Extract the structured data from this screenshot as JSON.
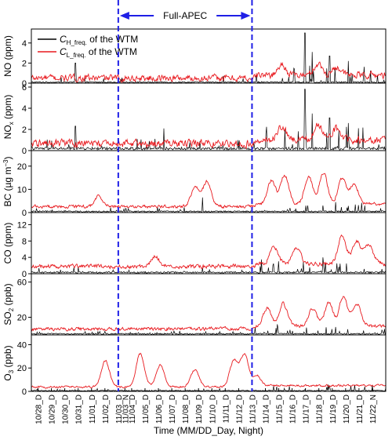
{
  "chart_data": {
    "type": "line",
    "apec_label": "Full-APEC",
    "apec_period": {
      "start_index": 10,
      "end_index": 27
    },
    "legend": {
      "placement": "top-left",
      "entries": [
        {
          "name_main": "C",
          "name_sub": "H_freq.",
          "suffix": " of the WTM",
          "color": "#000000"
        },
        {
          "name_main": "C",
          "name_sub": "L_freq.",
          "suffix": " of the WTM",
          "color": "#e8191e"
        }
      ]
    },
    "xlabel": "Time (MM/DD_Day, Night)",
    "categories": [
      "10/28_D",
      "10/29_D",
      "10/30_D",
      "10/31_D",
      "11/01_D",
      "11/02_D",
      "11/03_D",
      "11/03_N",
      "11/04_D",
      "11/05_D",
      "11/06_D",
      "11/07_D",
      "11/08_D",
      "11/09_D",
      "11/10_D",
      "11/11_D",
      "11/12_D",
      "11/13_D",
      "11/14_D",
      "11/15_D",
      "11/16_D",
      "11/17_D",
      "11/18_D",
      "11/19_D",
      "11/20_D",
      "11/21_D",
      "11/22_N"
    ],
    "category_positions": [
      0,
      1,
      2,
      3,
      4,
      5,
      6,
      6.5,
      7,
      8,
      9,
      10,
      11,
      12,
      13,
      14,
      15,
      16,
      17,
      18,
      19,
      20,
      21,
      22,
      23,
      24,
      25
    ],
    "x_range": [
      -0.5,
      26.0
    ],
    "apec_start_pos": 6,
    "apec_end_pos": 16,
    "panels": [
      {
        "ylabel_main": "NO (ppm)",
        "ylabel_sub": "",
        "ylabel_rest": "",
        "ylabel_sup": "",
        "ylim": [
          0,
          5
        ],
        "ticks": [
          0,
          2,
          4
        ],
        "high_base": 0.12,
        "high_spike": 1.2,
        "low_base": 0.35,
        "low_level": 0.8,
        "peaks": [
          {
            "x": 2.8,
            "v": 2.0
          },
          {
            "x": 19.95,
            "v": 5.1
          },
          {
            "x": 20.5,
            "v": 3.1
          },
          {
            "x": 21.8,
            "v": 2.7
          },
          {
            "x": 23.2,
            "v": 2.2
          }
        ],
        "red_bumps": [
          {
            "x": 18.2,
            "v": 1.4
          },
          {
            "x": 20.9,
            "v": 1.5
          },
          {
            "x": 22.3,
            "v": 1.2
          }
        ]
      },
      {
        "ylabel_main": "NO",
        "ylabel_sub": "x",
        "ylabel_rest": " (ppm)",
        "ylabel_sup": "",
        "ylim": [
          0,
          6
        ],
        "ticks": [
          0,
          2,
          4,
          6
        ],
        "high_base": 0.25,
        "high_spike": 1.4,
        "low_base": 0.5,
        "low_level": 1.0,
        "peaks": [
          {
            "x": 2.8,
            "v": 2.3
          },
          {
            "x": 9.4,
            "v": 2.1
          },
          {
            "x": 19.95,
            "v": 5.8
          },
          {
            "x": 20.5,
            "v": 3.5
          },
          {
            "x": 21.8,
            "v": 3.1
          },
          {
            "x": 23.2,
            "v": 2.6
          }
        ],
        "red_bumps": [
          {
            "x": 18.2,
            "v": 1.8
          },
          {
            "x": 20.9,
            "v": 2.0
          },
          {
            "x": 22.3,
            "v": 1.6
          }
        ]
      },
      {
        "ylabel_main": "BC (µg m",
        "ylabel_sub": "",
        "ylabel_rest": ")",
        "ylabel_sup": "−3",
        "ylim": [
          0,
          25
        ],
        "ticks": [
          0,
          10,
          20
        ],
        "high_base": 0.6,
        "high_spike": 2.5,
        "low_base": 2.0,
        "low_level": 3.5,
        "peaks": [
          {
            "x": 12.3,
            "v": 6.5
          }
        ],
        "red_bumps": [
          {
            "x": 4.5,
            "v": 6.5
          },
          {
            "x": 11.7,
            "v": 10.5
          },
          {
            "x": 12.6,
            "v": 13.0
          },
          {
            "x": 17.4,
            "v": 12.5
          },
          {
            "x": 18.4,
            "v": 15.0
          },
          {
            "x": 20.2,
            "v": 14.0
          },
          {
            "x": 21.3,
            "v": 16.0
          },
          {
            "x": 22.7,
            "v": 13.5
          },
          {
            "x": 23.6,
            "v": 11.0
          }
        ]
      },
      {
        "ylabel_main": "CO (ppm)",
        "ylabel_sub": "",
        "ylabel_rest": "",
        "ylabel_sup": "",
        "ylim": [
          0,
          14
        ],
        "ticks": [
          0,
          4,
          8,
          12
        ],
        "high_base": 0.4,
        "high_spike": 1.8,
        "low_base": 1.5,
        "low_level": 2.4,
        "peaks": [
          {
            "x": 16.7,
            "v": 3.5
          },
          {
            "x": 21.3,
            "v": 4.0
          }
        ],
        "red_bumps": [
          {
            "x": 8.7,
            "v": 4.0
          },
          {
            "x": 17.6,
            "v": 5.5
          },
          {
            "x": 19.3,
            "v": 5.5
          },
          {
            "x": 22.7,
            "v": 8.5
          },
          {
            "x": 23.8,
            "v": 7.0
          },
          {
            "x": 24.7,
            "v": 6.5
          }
        ]
      },
      {
        "ylabel_main": "SO",
        "ylabel_sub": "2",
        "ylabel_rest": " (ppb)",
        "ylabel_sup": "",
        "ylim": [
          0,
          65
        ],
        "ticks": [
          20,
          60
        ],
        "high_base": 1.5,
        "high_spike": 5.0,
        "low_base": 5.0,
        "low_level": 10.0,
        "peaks": [
          {
            "x": 17.9,
            "v": 12.0
          }
        ],
        "red_bumps": [
          {
            "x": 17.1,
            "v": 26.0
          },
          {
            "x": 18.3,
            "v": 31.0
          },
          {
            "x": 20.5,
            "v": 25.0
          },
          {
            "x": 21.7,
            "v": 32.0
          },
          {
            "x": 22.8,
            "v": 39.0
          },
          {
            "x": 23.8,
            "v": 30.0
          }
        ]
      },
      {
        "ylabel_main": "O",
        "ylabel_sub": "3",
        "ylabel_rest": " (ppb)",
        "ylabel_sup": "",
        "ylim": [
          0,
          45
        ],
        "ticks": [
          0,
          20,
          40
        ],
        "high_base": 0.8,
        "high_spike": 3.0,
        "low_base": 3.0,
        "low_level": 5.0,
        "peaks": [],
        "red_bumps": [
          {
            "x": 5.0,
            "v": 26.0
          },
          {
            "x": 7.6,
            "v": 32.0
          },
          {
            "x": 9.1,
            "v": 22.0
          },
          {
            "x": 11.7,
            "v": 18.0
          },
          {
            "x": 14.6,
            "v": 26.0
          },
          {
            "x": 15.4,
            "v": 31.0
          },
          {
            "x": 16.3,
            "v": 12.0
          }
        ]
      }
    ]
  }
}
